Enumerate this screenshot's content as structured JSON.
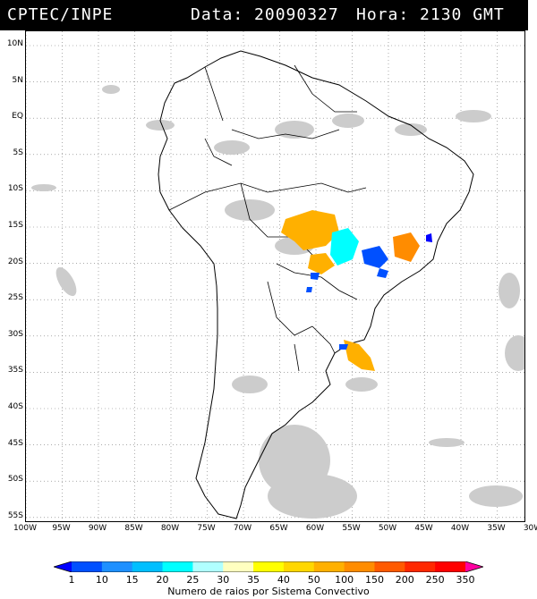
{
  "header": {
    "source": "CPTEC/INPE",
    "date_label": "Data: 20090327",
    "time_label": "Hora: 2130 GMT"
  },
  "map": {
    "lat_labels": [
      "10N",
      "5N",
      "EQ",
      "5S",
      "10S",
      "15S",
      "20S",
      "25S",
      "30S",
      "35S",
      "40S",
      "45S",
      "50S",
      "55S"
    ],
    "lon_labels": [
      "100W",
      "95W",
      "90W",
      "85W",
      "80W",
      "75W",
      "70W",
      "65W",
      "60W",
      "55W",
      "50W",
      "45W",
      "40W",
      "35W",
      "30W"
    ]
  },
  "legend": {
    "values": [
      "1",
      "10",
      "15",
      "20",
      "25",
      "30",
      "35",
      "40",
      "50",
      "100",
      "150",
      "200",
      "250",
      "350"
    ],
    "caption": "Numero de raios por Sistema Convectivo",
    "colors": [
      "#0000ff",
      "#0050ff",
      "#1e90ff",
      "#00bfff",
      "#00ffff",
      "#b0ffff",
      "#ffffc0",
      "#ffff00",
      "#ffd700",
      "#ffb000",
      "#ff8c00",
      "#ff5a00",
      "#ff2800",
      "#ff0000",
      "#ff00a0"
    ]
  }
}
